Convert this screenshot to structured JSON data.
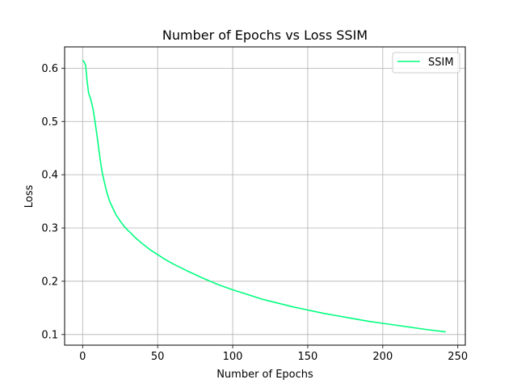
{
  "chart_data": {
    "type": "line",
    "title": "Number of Epochs vs Loss SSIM",
    "xlabel": "Number of Epochs",
    "ylabel": "Loss",
    "xlim": [
      -12,
      255
    ],
    "ylim": [
      0.08,
      0.64
    ],
    "xticks": [
      0,
      50,
      100,
      150,
      200,
      250
    ],
    "yticks": [
      0.1,
      0.2,
      0.3,
      0.4,
      0.5,
      0.6
    ],
    "xtick_labels": [
      "0",
      "50",
      "100",
      "150",
      "200",
      "250"
    ],
    "ytick_labels": [
      "0.1",
      "0.2",
      "0.3",
      "0.4",
      "0.5",
      "0.6"
    ],
    "grid": true,
    "legend": {
      "position": "top-right",
      "entries": [
        "SSIM"
      ]
    },
    "series": [
      {
        "name": "SSIM",
        "color": "#00ff7f",
        "x": [
          0,
          1,
          2,
          3,
          4,
          5,
          6,
          7,
          8,
          9,
          10,
          11,
          12,
          13,
          14,
          15,
          16,
          18,
          20,
          22,
          25,
          28,
          30,
          33,
          35,
          40,
          45,
          50,
          55,
          60,
          70,
          80,
          90,
          100,
          110,
          120,
          130,
          140,
          150,
          160,
          170,
          180,
          190,
          200,
          210,
          220,
          230,
          242
        ],
        "y": [
          0.615,
          0.612,
          0.605,
          0.575,
          0.553,
          0.545,
          0.535,
          0.522,
          0.505,
          0.485,
          0.465,
          0.443,
          0.423,
          0.405,
          0.392,
          0.38,
          0.368,
          0.35,
          0.338,
          0.326,
          0.313,
          0.302,
          0.296,
          0.288,
          0.282,
          0.27,
          0.259,
          0.25,
          0.241,
          0.233,
          0.219,
          0.206,
          0.194,
          0.184,
          0.175,
          0.166,
          0.159,
          0.152,
          0.146,
          0.14,
          0.135,
          0.13,
          0.125,
          0.121,
          0.117,
          0.113,
          0.109,
          0.105
        ]
      }
    ]
  }
}
